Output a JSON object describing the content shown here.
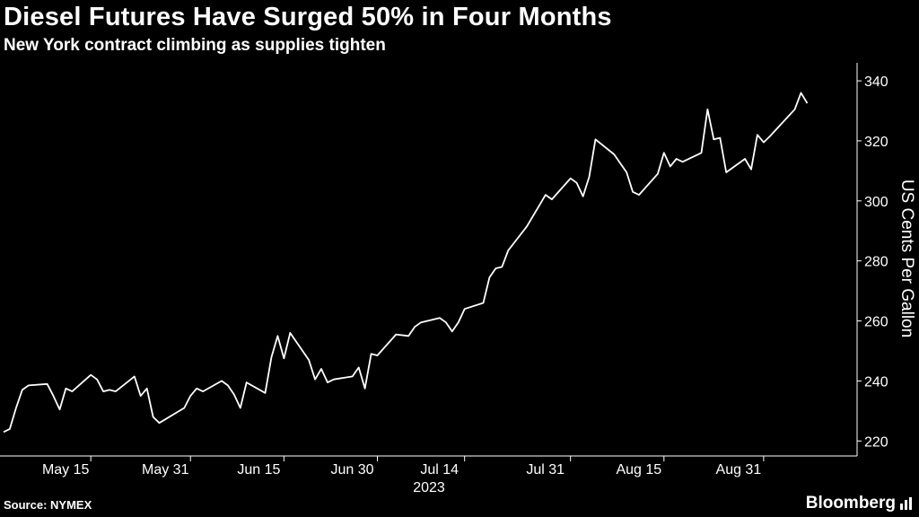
{
  "title": "Diesel Futures Have Surged 50% in Four Months",
  "subtitle": "New York contract climbing as supplies tighten",
  "source": "Source: NYMEX",
  "brand": "Bloomberg",
  "colors": {
    "background": "#000000",
    "line": "#ffffff",
    "text": "#ffffff"
  },
  "chart_data": {
    "type": "line",
    "ylabel": "US Cents Per Gallon",
    "ylim": [
      215,
      346
    ],
    "yticks": [
      220,
      240,
      260,
      280,
      300,
      320,
      340
    ],
    "xlim": [
      "2023-05-01",
      "2023-09-15"
    ],
    "xticks": [
      {
        "date": "2023-05-15",
        "label": "May 15"
      },
      {
        "date": "2023-05-31",
        "label": "May 31"
      },
      {
        "date": "2023-06-15",
        "label": "Jun 15"
      },
      {
        "date": "2023-06-30",
        "label": "Jun 30"
      },
      {
        "date": "2023-07-14",
        "label": "Jul 14"
      },
      {
        "date": "2023-07-31",
        "label": "Jul 31"
      },
      {
        "date": "2023-08-15",
        "label": "Aug 15"
      },
      {
        "date": "2023-08-31",
        "label": "Aug 31"
      }
    ],
    "year_label": "2023",
    "series": [
      {
        "points": [
          [
            "2023-05-01",
            223
          ],
          [
            "2023-05-02",
            224
          ],
          [
            "2023-05-03",
            231
          ],
          [
            "2023-05-04",
            237
          ],
          [
            "2023-05-05",
            238.5
          ],
          [
            "2023-05-08",
            239
          ],
          [
            "2023-05-09",
            235
          ],
          [
            "2023-05-10",
            230.5
          ],
          [
            "2023-05-11",
            237.5
          ],
          [
            "2023-05-12",
            236.5
          ],
          [
            "2023-05-15",
            242
          ],
          [
            "2023-05-16",
            240.5
          ],
          [
            "2023-05-17",
            236.5
          ],
          [
            "2023-05-18",
            237
          ],
          [
            "2023-05-19",
            236.5
          ],
          [
            "2023-05-22",
            241.5
          ],
          [
            "2023-05-23",
            235
          ],
          [
            "2023-05-24",
            237.5
          ],
          [
            "2023-05-25",
            228
          ],
          [
            "2023-05-26",
            226
          ],
          [
            "2023-05-30",
            231
          ],
          [
            "2023-05-31",
            235
          ],
          [
            "2023-06-01",
            237.5
          ],
          [
            "2023-06-02",
            236.5
          ],
          [
            "2023-06-05",
            240
          ],
          [
            "2023-06-06",
            238.5
          ],
          [
            "2023-06-07",
            235.5
          ],
          [
            "2023-06-08",
            231
          ],
          [
            "2023-06-09",
            239.5
          ],
          [
            "2023-06-12",
            236
          ],
          [
            "2023-06-13",
            248
          ],
          [
            "2023-06-14",
            255
          ],
          [
            "2023-06-15",
            247.5
          ],
          [
            "2023-06-16",
            256
          ],
          [
            "2023-06-19",
            247
          ],
          [
            "2023-06-20",
            240.5
          ],
          [
            "2023-06-21",
            244
          ],
          [
            "2023-06-22",
            239.5
          ],
          [
            "2023-06-23",
            240.5
          ],
          [
            "2023-06-26",
            241.5
          ],
          [
            "2023-06-27",
            244.5
          ],
          [
            "2023-06-28",
            237.5
          ],
          [
            "2023-06-29",
            249
          ],
          [
            "2023-06-30",
            248.5
          ],
          [
            "2023-07-03",
            255.5
          ],
          [
            "2023-07-05",
            255
          ],
          [
            "2023-07-06",
            258
          ],
          [
            "2023-07-07",
            259.5
          ],
          [
            "2023-07-10",
            261
          ],
          [
            "2023-07-11",
            259.5
          ],
          [
            "2023-07-12",
            256.5
          ],
          [
            "2023-07-13",
            259.5
          ],
          [
            "2023-07-14",
            264
          ],
          [
            "2023-07-17",
            266
          ],
          [
            "2023-07-18",
            274.5
          ],
          [
            "2023-07-19",
            277.5
          ],
          [
            "2023-07-20",
            278
          ],
          [
            "2023-07-21",
            283.5
          ],
          [
            "2023-07-24",
            291.5
          ],
          [
            "2023-07-25",
            295
          ],
          [
            "2023-07-26",
            298.5
          ],
          [
            "2023-07-27",
            302
          ],
          [
            "2023-07-28",
            300.5
          ],
          [
            "2023-07-31",
            307.5
          ],
          [
            "2023-08-01",
            306
          ],
          [
            "2023-08-02",
            301.5
          ],
          [
            "2023-08-03",
            308
          ],
          [
            "2023-08-04",
            320.5
          ],
          [
            "2023-08-07",
            315.5
          ],
          [
            "2023-08-08",
            312.5
          ],
          [
            "2023-08-09",
            309.5
          ],
          [
            "2023-08-10",
            303
          ],
          [
            "2023-08-11",
            302
          ],
          [
            "2023-08-14",
            309
          ],
          [
            "2023-08-15",
            316
          ],
          [
            "2023-08-16",
            311.5
          ],
          [
            "2023-08-17",
            314
          ],
          [
            "2023-08-18",
            313
          ],
          [
            "2023-08-21",
            316
          ],
          [
            "2023-08-22",
            330.5
          ],
          [
            "2023-08-23",
            320.5
          ],
          [
            "2023-08-24",
            321
          ],
          [
            "2023-08-25",
            309.5
          ],
          [
            "2023-08-28",
            314
          ],
          [
            "2023-08-29",
            310.5
          ],
          [
            "2023-08-30",
            322
          ],
          [
            "2023-08-31",
            319.5
          ],
          [
            "2023-09-01",
            321.5
          ],
          [
            "2023-09-05",
            330.5
          ],
          [
            "2023-09-06",
            336
          ],
          [
            "2023-09-07",
            332.5
          ]
        ]
      }
    ],
    "grid": false,
    "legend": "none"
  }
}
